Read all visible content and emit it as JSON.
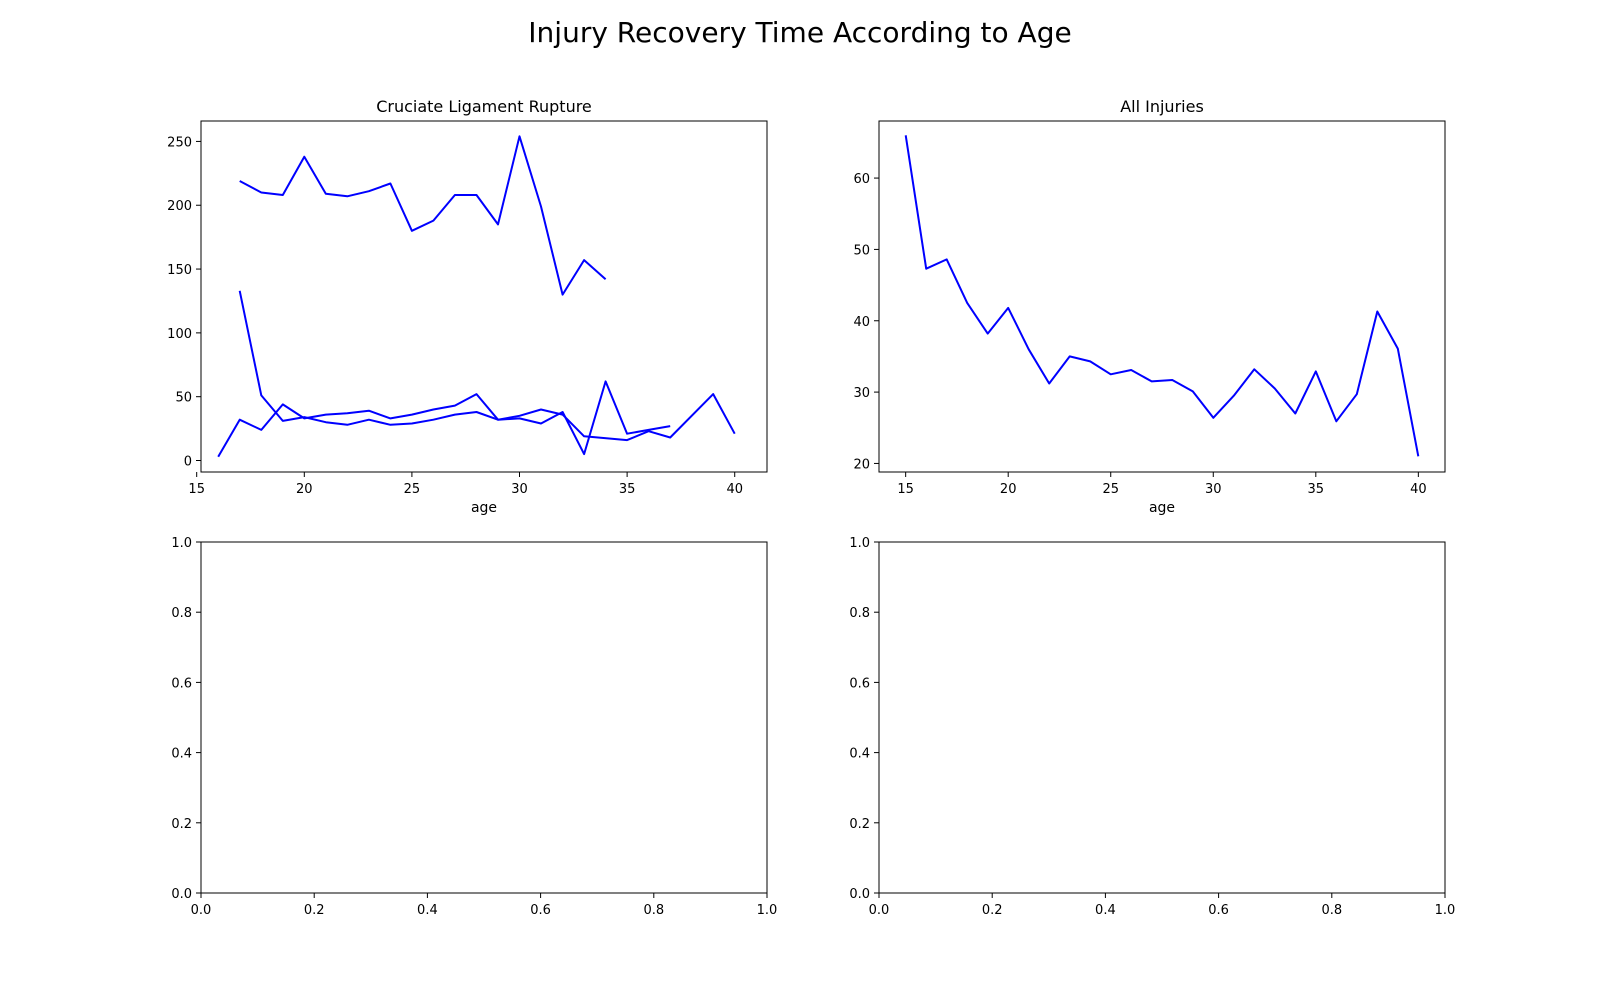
{
  "figure": {
    "title": "Injury Recovery Time According to Age",
    "line_color": "#0000ff"
  },
  "chart_data": [
    {
      "type": "line",
      "title": "Cruciate Ligament Rupture",
      "xlabel": "age",
      "ylabel": "",
      "xlim": [
        15.2,
        41.5
      ],
      "ylim": [
        -9,
        266
      ],
      "xticks": [
        15,
        20,
        25,
        30,
        35,
        40
      ],
      "yticks": [
        0,
        50,
        100,
        150,
        200,
        250
      ],
      "series": [
        {
          "x": [
            17,
            18,
            19,
            20,
            21,
            22,
            23,
            24,
            25,
            26,
            27,
            28,
            29,
            30,
            31,
            32,
            33,
            34
          ],
          "values": [
            219,
            210,
            208,
            238,
            209,
            207,
            211,
            217,
            180,
            188,
            208,
            208,
            185,
            254,
            199,
            130,
            157,
            142
          ]
        },
        {
          "x": [
            17,
            18,
            19,
            20,
            21,
            22,
            23,
            24,
            25,
            26,
            27,
            28,
            29,
            30,
            31,
            32,
            33,
            34,
            35,
            36,
            37
          ],
          "values": [
            133,
            51,
            31,
            34,
            30,
            28,
            32,
            28,
            29,
            32,
            36,
            38,
            32,
            33,
            29,
            38,
            5,
            62,
            21,
            24,
            27
          ]
        },
        {
          "x": [
            16,
            17,
            18,
            19,
            20,
            21,
            22,
            23,
            24,
            25,
            26,
            27,
            28,
            29,
            30,
            31,
            32,
            33,
            35,
            36,
            37,
            39,
            40
          ],
          "values": [
            3,
            32,
            24,
            44,
            33,
            36,
            37,
            39,
            33,
            36,
            40,
            43,
            52,
            32,
            35,
            40,
            36,
            19,
            16,
            23,
            18,
            52,
            21
          ]
        }
      ]
    },
    {
      "type": "line",
      "title": "All Injuries",
      "xlabel": "age",
      "ylabel": "",
      "xlim": [
        13.7,
        41.3
      ],
      "ylim": [
        18.8,
        68
      ],
      "xticks": [
        15,
        20,
        25,
        30,
        35,
        40
      ],
      "yticks": [
        20,
        30,
        40,
        50,
        60
      ],
      "series": [
        {
          "x": [
            15,
            16,
            17,
            18,
            19,
            20,
            21,
            22,
            23,
            24,
            25,
            26,
            27,
            28,
            29,
            30,
            31,
            32,
            33,
            34,
            35,
            36,
            37,
            38,
            39,
            40
          ],
          "values": [
            66,
            47.3,
            48.6,
            42.5,
            38.2,
            41.8,
            36,
            31.2,
            35,
            34.3,
            32.5,
            33.1,
            31.5,
            31.7,
            30.1,
            26.4,
            29.5,
            33.2,
            30.5,
            27,
            32.9,
            25.9,
            29.7,
            41.3,
            36.1,
            21
          ]
        }
      ]
    },
    {
      "type": "line",
      "title": "",
      "xlabel": "",
      "ylabel": "",
      "xlim": [
        0,
        1
      ],
      "ylim": [
        0,
        1
      ],
      "xticks": [
        0.0,
        0.2,
        0.4,
        0.6,
        0.8,
        1.0
      ],
      "yticks": [
        0.0,
        0.2,
        0.4,
        0.6,
        0.8,
        1.0
      ],
      "series": []
    },
    {
      "type": "line",
      "title": "",
      "xlabel": "",
      "ylabel": "",
      "xlim": [
        0,
        1
      ],
      "ylim": [
        0,
        1
      ],
      "xticks": [
        0.0,
        0.2,
        0.4,
        0.6,
        0.8,
        1.0
      ],
      "yticks": [
        0.0,
        0.2,
        0.4,
        0.6,
        0.8,
        1.0
      ],
      "series": []
    }
  ]
}
